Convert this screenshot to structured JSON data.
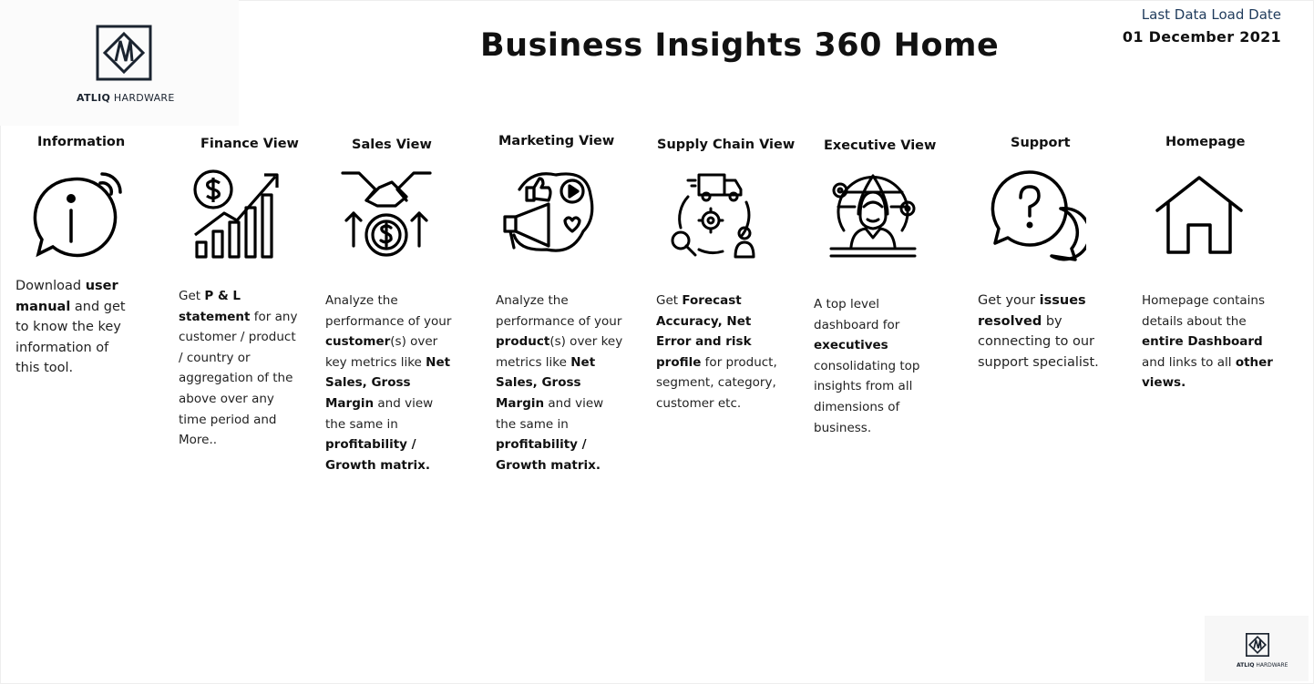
{
  "brand": {
    "logo_bold": "ATLIQ",
    "logo_rest": " HARDWARE"
  },
  "header": {
    "title": "Business Insights 360 Home",
    "load_label": "Last Data Load Date",
    "load_date": "01 December 2021"
  },
  "tiles": [
    {
      "title": "Information",
      "icon": "info-icon",
      "desc": [
        [
          "Download ",
          false
        ],
        [
          "user manual",
          true
        ],
        [
          " and get to know the key information of this tool.",
          false
        ]
      ]
    },
    {
      "title": "Finance View",
      "icon": "finance-growth-icon",
      "desc": [
        [
          "Get  ",
          false
        ],
        [
          "P & L statement",
          true
        ],
        [
          " for any customer / product / country or aggregation of the above over any time period and More..",
          false
        ]
      ]
    },
    {
      "title": "Sales View",
      "icon": "handshake-money-icon",
      "desc": [
        [
          "Analyze the performance of your ",
          false
        ],
        [
          "customer",
          true
        ],
        [
          "(s) over key metrics like ",
          false
        ],
        [
          "Net Sales, Gross Margin",
          true
        ],
        [
          " and view the same in ",
          false
        ],
        [
          "profitability / Growth matrix.",
          true
        ]
      ]
    },
    {
      "title": "Marketing View",
      "icon": "megaphone-marketing-icon",
      "desc": [
        [
          "Analyze the performance of your ",
          false
        ],
        [
          "product",
          true
        ],
        [
          "(s) over key metrics like ",
          false
        ],
        [
          "Net Sales, Gross Margin",
          true
        ],
        [
          " and view the same in ",
          false
        ],
        [
          "profitability / Growth matrix.",
          true
        ]
      ]
    },
    {
      "title": "Supply Chain View",
      "icon": "supply-chain-icon",
      "desc": [
        [
          "Get ",
          false
        ],
        [
          "Forecast Accuracy, Net Error and risk profile",
          true
        ],
        [
          " for product, segment, category, customer etc.",
          false
        ]
      ]
    },
    {
      "title": "Executive View",
      "icon": "executive-icon",
      "desc": [
        [
          "A top level dashboard for ",
          false
        ],
        [
          "executives",
          true
        ],
        [
          " consolidating top insights from all dimensions of business.",
          false
        ]
      ]
    },
    {
      "title": "Support",
      "icon": "support-question-icon",
      "desc": [
        [
          "Get your ",
          false
        ],
        [
          "issues resolved",
          true
        ],
        [
          " by connecting to our support specialist.",
          false
        ]
      ]
    },
    {
      "title": "Homepage",
      "icon": "home-icon",
      "desc": [
        [
          "Homepage contains details about the ",
          false
        ],
        [
          "entire Dashboard",
          true
        ],
        [
          " and links to all ",
          false
        ],
        [
          "other views.",
          true
        ]
      ]
    }
  ]
}
